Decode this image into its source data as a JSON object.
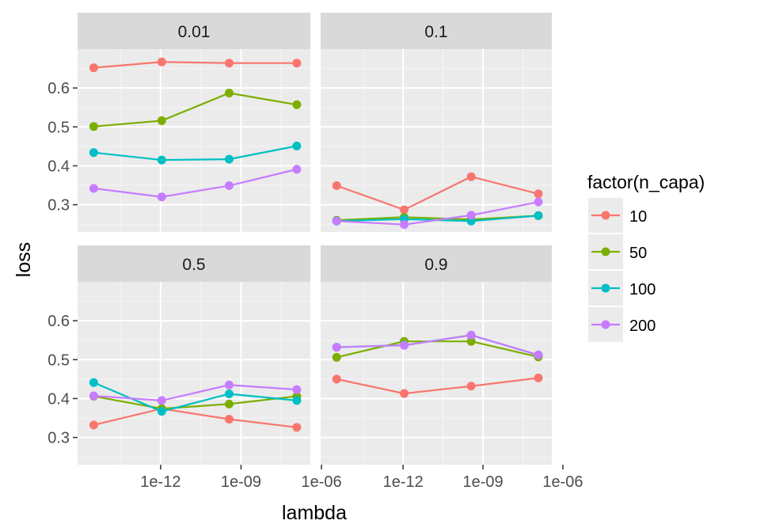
{
  "chart_data": {
    "type": "line",
    "xlabel": "lambda",
    "ylabel": "loss",
    "x_scale": "log10",
    "x_tick_labels": [
      "1e-12",
      "1e-09",
      "1e-06"
    ],
    "x_tick_values": [
      1e-12,
      1e-09,
      1e-06
    ],
    "x_values": [
      1e-15,
      1e-12,
      1e-09,
      1e-06
    ],
    "x_points_plotted": [
      3.2e-15,
      1.1e-12,
      3.6e-10,
      1.2e-07
    ],
    "y_ticks": [
      0.3,
      0.4,
      0.5,
      0.6
    ],
    "ylim": [
      0.23,
      0.7
    ],
    "legend": {
      "title": "factor(n_capa)",
      "position": "right",
      "entries": [
        "10",
        "50",
        "100",
        "200"
      ]
    },
    "series_colors": {
      "10": "#F8766D",
      "50": "#7CAE00",
      "100": "#00BFC4",
      "200": "#C77CFF"
    },
    "panels": [
      {
        "label": "0.01",
        "series": [
          {
            "name": "10",
            "values": [
              0.652,
              0.667,
              0.664,
              0.664
            ]
          },
          {
            "name": "50",
            "values": [
              0.501,
              0.516,
              0.587,
              0.557
            ]
          },
          {
            "name": "100",
            "values": [
              0.434,
              0.415,
              0.417,
              0.451
            ]
          },
          {
            "name": "200",
            "values": [
              0.342,
              0.32,
              0.349,
              0.391
            ]
          }
        ]
      },
      {
        "label": "0.1",
        "series": [
          {
            "name": "10",
            "values": [
              0.349,
              0.287,
              0.372,
              0.328
            ]
          },
          {
            "name": "50",
            "values": [
              0.26,
              0.268,
              0.262,
              0.272
            ]
          },
          {
            "name": "100",
            "values": [
              0.258,
              0.263,
              0.258,
              0.272
            ]
          },
          {
            "name": "200",
            "values": [
              0.258,
              0.249,
              0.273,
              0.307
            ]
          }
        ]
      },
      {
        "label": "0.5",
        "series": [
          {
            "name": "10",
            "values": [
              0.332,
              0.374,
              0.347,
              0.326
            ]
          },
          {
            "name": "50",
            "values": [
              0.406,
              0.374,
              0.386,
              0.406
            ]
          },
          {
            "name": "100",
            "values": [
              0.441,
              0.367,
              0.412,
              0.395
            ]
          },
          {
            "name": "200",
            "values": [
              0.407,
              0.395,
              0.435,
              0.423
            ]
          }
        ]
      },
      {
        "label": "0.9",
        "series": [
          {
            "name": "10",
            "values": [
              0.45,
              0.413,
              0.432,
              0.453
            ]
          },
          {
            "name": "50",
            "values": [
              0.506,
              0.547,
              0.547,
              0.507
            ]
          },
          {
            "name": "100",
            "values": [
              0.532,
              0.537,
              0.563,
              0.512
            ]
          },
          {
            "name": "200",
            "values": [
              0.532,
              0.537,
              0.563,
              0.512
            ]
          }
        ]
      }
    ]
  }
}
